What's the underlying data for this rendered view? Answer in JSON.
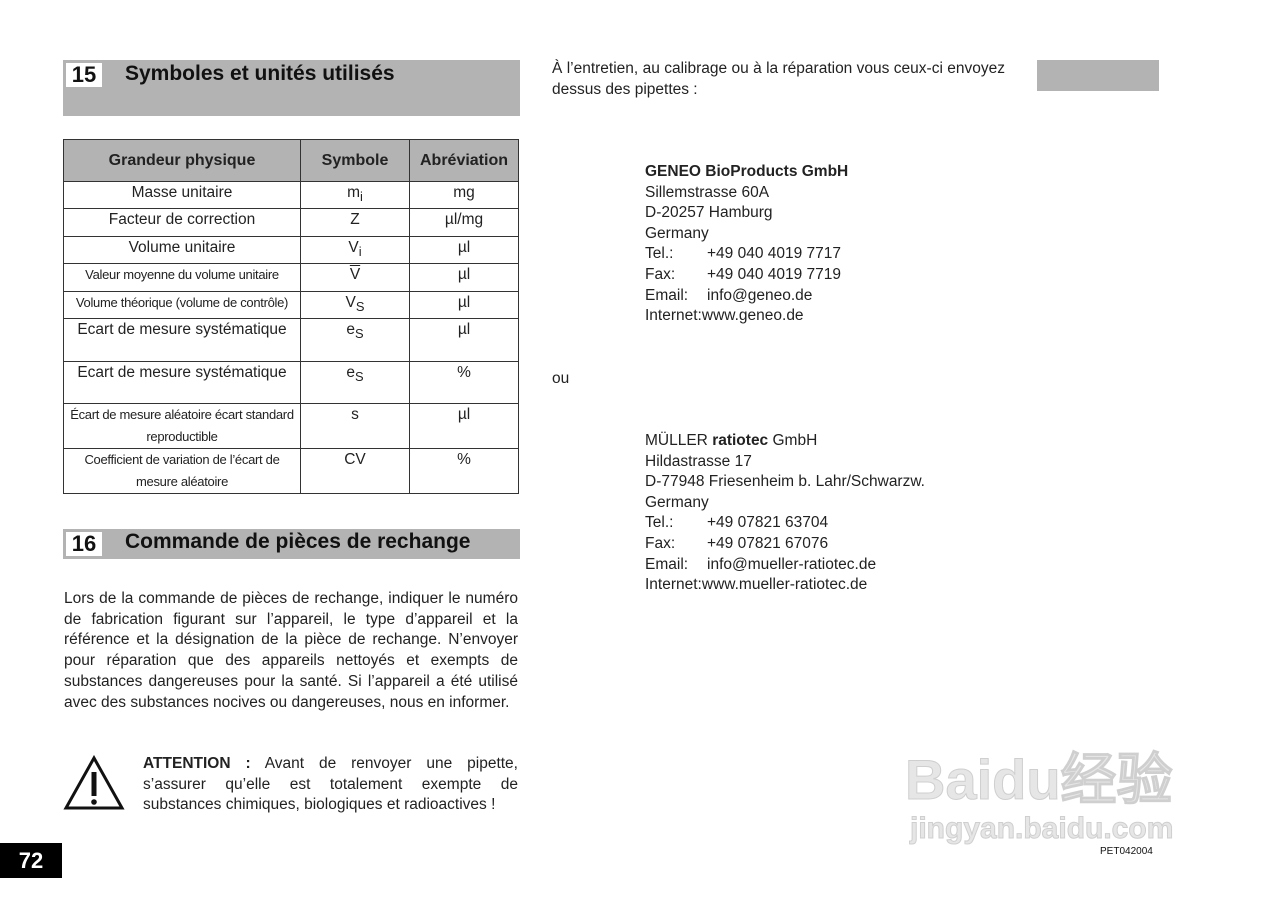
{
  "section15": {
    "number": "15",
    "title": "Symboles et unités utilisés"
  },
  "table": {
    "headers": [
      "Grandeur physique",
      "Symbole",
      "Abréviation"
    ],
    "rows": [
      {
        "quantity": "Masse unitaire",
        "symbol": "m",
        "sub": "i",
        "unit": "mg"
      },
      {
        "quantity": "Facteur de correction",
        "symbol": "Z",
        "sub": "",
        "unit": "µl/mg"
      },
      {
        "quantity": "Volume unitaire",
        "symbol": "V",
        "sub": "i",
        "unit": "µl"
      },
      {
        "quantity": "Valeur moyenne du volume unitaire",
        "symbol": "V",
        "sub": "",
        "unit": "µl",
        "overline": true
      },
      {
        "quantity": "Volume théorique (volume de contrôle)",
        "symbol": "V",
        "sub": "S",
        "unit": "µl"
      },
      {
        "quantity": "Ecart de mesure systématique",
        "symbol": "e",
        "sub": "S",
        "unit": "µl"
      },
      {
        "quantity": "Ecart de mesure systématique",
        "symbol": "e",
        "sub": "S",
        "unit": "%"
      },
      {
        "quantity": "Écart de mesure aléatoire écart standard reproductible",
        "symbol": "s",
        "sub": "",
        "unit": "µl"
      },
      {
        "quantity": "Coefficient de variation de l’écart de mesure aléatoire",
        "symbol": "CV",
        "sub": "",
        "unit": "%"
      }
    ]
  },
  "section16": {
    "number": "16",
    "title": "Commande de pièces de rechange",
    "body": "Lors de la commande de pièces de rechange, indiquer le numéro de fabrication figurant sur l’appareil, le type d’appareil et la référence et la désignation de la pièce de rechange. N’envoyer pour réparation que des appareils nettoyés et exempts de substances dangereuses pour la santé. Si l’appareil a été utilisé avec des substances nocives ou dangereuses, nous en informer.",
    "attention_label": "ATTENTION :",
    "attention_text": " Avant de renvoyer une pipette, s’assurer qu’elle est totalement exempte de substances chimiques, biologiques et radioactives !"
  },
  "right": {
    "intro": "À l’entretien, au calibrage ou à la réparation vous ceux-ci envoyez dessus des pipettes :",
    "or": "ou",
    "address1": {
      "name": "GENEO BioProducts GmbH",
      "street": "Sillemstrasse 60A",
      "city": "D-20257 Hamburg",
      "country": "Germany",
      "tel_label": "Tel.:",
      "tel": "+49 040 4019 7717",
      "fax_label": "Fax:",
      "fax": "+49 040 4019 7719",
      "email_label": "Email:",
      "email": "info@geneo.de",
      "internet_label": "Internet:",
      "internet": "www.geneo.de"
    },
    "address2": {
      "name_a": "MÜLLER ",
      "name_b": "ratiotec",
      "name_c": " GmbH",
      "street": "Hildastrasse 17",
      "city": "D-77948 Friesenheim b. Lahr/Schwarzw.",
      "country": "Germany",
      "tel_label": "Tel.:",
      "tel": "+49 07821 63704",
      "fax_label": "Fax:",
      "fax": "+49 07821 67076",
      "email_label": "Email:",
      "email": "info@mueller-ratiotec.de",
      "internet_label": "Internet:",
      "internet": "www.mueller-ratiotec.de"
    }
  },
  "footer": {
    "page_number": "72",
    "doc_code": "PET042004"
  },
  "watermark": {
    "text": "Baidu经验",
    "url_text": "jingyan.baidu.com"
  }
}
